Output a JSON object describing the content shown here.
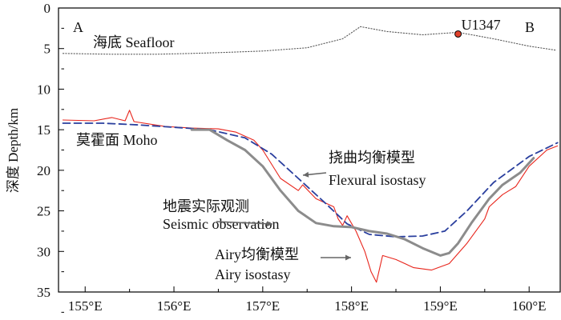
{
  "chart_data": {
    "type": "line",
    "ylabel": "深度 Depth/km",
    "xlim": [
      154.7,
      160.35
    ],
    "ylim": [
      0,
      35
    ],
    "y_inverted": true,
    "x_ticks": [
      155,
      156,
      157,
      158,
      159,
      160
    ],
    "x_tick_labels": [
      "155°E",
      "156°E",
      "157°E",
      "158°E",
      "159°E",
      "160°E"
    ],
    "y_ticks": [
      0,
      5,
      10,
      15,
      20,
      25,
      30,
      35
    ],
    "y_tick_labels": [
      "0",
      "5",
      "10",
      "15",
      "20",
      "25",
      "30",
      "35"
    ],
    "grid": false,
    "profile_start_label": "A",
    "profile_end_label": "B",
    "site": {
      "label": "U1347",
      "x": 159.2,
      "y": 3.2,
      "color": "#e0412b"
    },
    "series": [
      {
        "key": "seafloor",
        "style": "dotted",
        "color": "#555555",
        "x": [
          154.75,
          155.3,
          155.8,
          156.2,
          156.5,
          157.0,
          157.5,
          157.9,
          158.1,
          158.4,
          158.8,
          159.2,
          159.6,
          160.0,
          160.3
        ],
        "y": [
          5.6,
          5.7,
          5.7,
          5.6,
          5.5,
          5.3,
          4.9,
          3.8,
          2.3,
          2.9,
          3.3,
          3.0,
          3.8,
          4.7,
          5.2
        ]
      },
      {
        "key": "seismic",
        "style": "solid",
        "color": "#e8251c",
        "x": [
          154.75,
          155.1,
          155.3,
          155.45,
          155.5,
          155.55,
          155.9,
          156.2,
          156.5,
          156.7,
          156.9,
          157.0,
          157.2,
          157.4,
          157.45,
          157.6,
          157.8,
          157.85,
          157.9,
          157.95,
          158.05,
          158.15,
          158.22,
          158.28,
          158.35,
          158.5,
          158.7,
          158.9,
          159.1,
          159.3,
          159.5,
          159.55,
          159.7,
          159.85,
          160.0,
          160.2,
          160.32
        ],
        "y": [
          13.8,
          13.9,
          13.5,
          13.9,
          12.6,
          14.0,
          14.6,
          14.8,
          14.9,
          15.3,
          16.3,
          17.5,
          21.0,
          22.5,
          21.8,
          23.5,
          24.5,
          26.0,
          26.8,
          25.6,
          27.5,
          30.0,
          32.5,
          33.8,
          30.5,
          31.0,
          32.0,
          32.3,
          31.5,
          29.0,
          26.0,
          24.5,
          23.0,
          22.0,
          19.5,
          17.5,
          17.0
        ]
      },
      {
        "key": "flexural",
        "style": "dashed",
        "color": "#2a3f9e",
        "x": [
          154.75,
          155.2,
          155.6,
          156.0,
          156.4,
          156.8,
          157.1,
          157.4,
          157.7,
          157.95,
          158.2,
          158.5,
          158.8,
          159.05,
          159.3,
          159.6,
          160.0,
          160.32
        ],
        "y": [
          14.2,
          14.2,
          14.4,
          14.7,
          15.0,
          16.0,
          18.0,
          21.0,
          24.0,
          26.6,
          27.9,
          28.2,
          28.1,
          27.5,
          25.0,
          21.5,
          18.3,
          16.6
        ]
      },
      {
        "key": "airy",
        "style": "solid",
        "color": "#8c8c8c",
        "x": [
          156.2,
          156.4,
          156.6,
          156.8,
          157.0,
          157.2,
          157.4,
          157.6,
          157.8,
          158.0,
          158.2,
          158.4,
          158.6,
          158.8,
          159.0,
          159.1,
          159.2,
          159.35,
          159.55,
          159.7,
          159.9,
          160.05
        ],
        "y": [
          15.0,
          15.0,
          16.3,
          17.5,
          19.5,
          22.5,
          25.0,
          26.5,
          26.9,
          27.0,
          27.5,
          27.8,
          28.5,
          29.6,
          30.5,
          30.2,
          29.0,
          26.5,
          23.5,
          21.8,
          20.3,
          18.5
        ]
      }
    ],
    "annotations": [
      {
        "key": "seafloor",
        "lines": [
          "海底 Seafloor"
        ]
      },
      {
        "key": "moho",
        "lines": [
          "莫霍面 Moho"
        ]
      },
      {
        "key": "flexural",
        "lines": [
          "挠曲均衡模型",
          "Flexural isostasy"
        ]
      },
      {
        "key": "seismic",
        "lines": [
          "地震实际观测",
          "Seismic observation"
        ]
      },
      {
        "key": "airy",
        "lines": [
          "Airy均衡模型",
          "Airy isostasy"
        ]
      }
    ]
  }
}
